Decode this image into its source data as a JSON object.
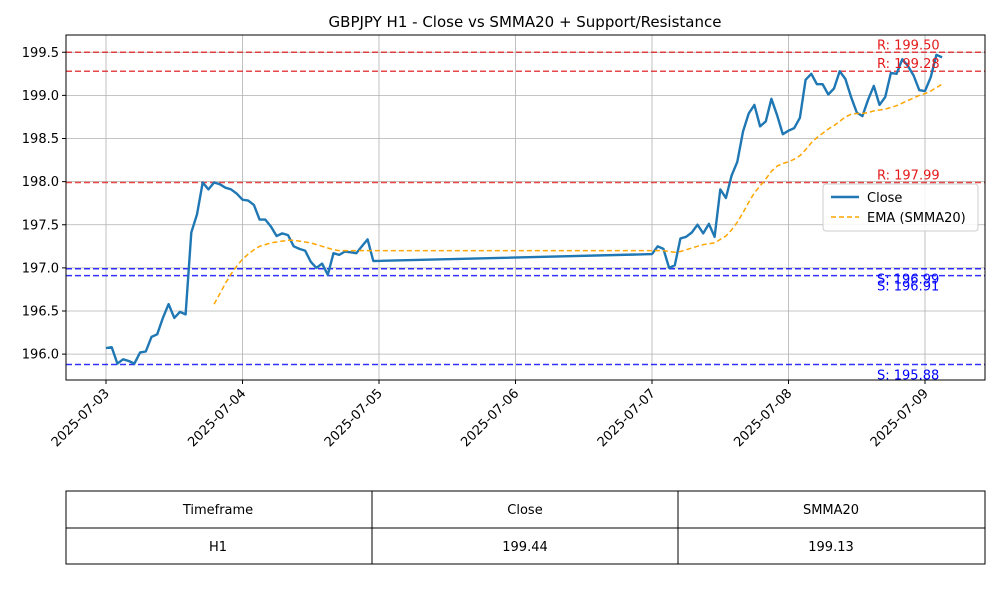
{
  "chart_data": {
    "type": "line",
    "title": "GBPJPY H1 - Close vs SMMA20 + Support/Resistance",
    "xlabel": "",
    "ylabel": "",
    "x_ticks": [
      "2025-07-03",
      "2025-07-04",
      "2025-07-05",
      "2025-07-06",
      "2025-07-07",
      "2025-07-08",
      "2025-07-09"
    ],
    "y_ticks": [
      "196.0",
      "196.5",
      "197.0",
      "197.5",
      "198.0",
      "198.5",
      "199.0",
      "199.5"
    ],
    "ylim": [
      195.7,
      199.7
    ],
    "grid": true,
    "legend_position": "right",
    "series": [
      {
        "name": "Close",
        "color": "#1f77b4",
        "style": "solid",
        "points": [
          [
            "2025-07-03T00:00",
            196.07
          ],
          [
            "2025-07-03T01:00",
            196.08
          ],
          [
            "2025-07-03T02:00",
            195.89
          ],
          [
            "2025-07-03T03:00",
            195.94
          ],
          [
            "2025-07-03T04:00",
            195.92
          ],
          [
            "2025-07-03T05:00",
            195.89
          ],
          [
            "2025-07-03T06:00",
            196.02
          ],
          [
            "2025-07-03T07:00",
            196.03
          ],
          [
            "2025-07-03T08:00",
            196.2
          ],
          [
            "2025-07-03T09:00",
            196.23
          ],
          [
            "2025-07-03T10:00",
            196.42
          ],
          [
            "2025-07-03T11:00",
            196.58
          ],
          [
            "2025-07-03T12:00",
            196.42
          ],
          [
            "2025-07-03T13:00",
            196.49
          ],
          [
            "2025-07-03T14:00",
            196.46
          ],
          [
            "2025-07-03T15:00",
            197.41
          ],
          [
            "2025-07-03T16:00",
            197.62
          ],
          [
            "2025-07-03T17:00",
            197.99
          ],
          [
            "2025-07-03T18:00",
            197.91
          ],
          [
            "2025-07-03T19:00",
            197.99
          ],
          [
            "2025-07-03T20:00",
            197.97
          ],
          [
            "2025-07-03T21:00",
            197.93
          ],
          [
            "2025-07-03T22:00",
            197.91
          ],
          [
            "2025-07-03T23:00",
            197.86
          ],
          [
            "2025-07-04T00:00",
            197.79
          ],
          [
            "2025-07-04T01:00",
            197.78
          ],
          [
            "2025-07-04T02:00",
            197.73
          ],
          [
            "2025-07-04T03:00",
            197.56
          ],
          [
            "2025-07-04T04:00",
            197.56
          ],
          [
            "2025-07-04T05:00",
            197.48
          ],
          [
            "2025-07-04T06:00",
            197.37
          ],
          [
            "2025-07-04T07:00",
            197.4
          ],
          [
            "2025-07-04T08:00",
            197.38
          ],
          [
            "2025-07-04T09:00",
            197.25
          ],
          [
            "2025-07-04T10:00",
            197.22
          ],
          [
            "2025-07-04T11:00",
            197.2
          ],
          [
            "2025-07-04T12:00",
            197.07
          ],
          [
            "2025-07-04T13:00",
            197.0
          ],
          [
            "2025-07-04T14:00",
            197.05
          ],
          [
            "2025-07-04T15:00",
            196.92
          ],
          [
            "2025-07-04T16:00",
            197.17
          ],
          [
            "2025-07-04T17:00",
            197.15
          ],
          [
            "2025-07-04T18:00",
            197.19
          ],
          [
            "2025-07-04T19:00",
            197.18
          ],
          [
            "2025-07-04T20:00",
            197.17
          ],
          [
            "2025-07-04T21:00",
            197.25
          ],
          [
            "2025-07-04T22:00",
            197.33
          ],
          [
            "2025-07-04T23:00",
            197.08
          ],
          [
            "2025-07-07T00:00",
            197.16
          ],
          [
            "2025-07-07T01:00",
            197.25
          ],
          [
            "2025-07-07T02:00",
            197.22
          ],
          [
            "2025-07-07T03:00",
            197.0
          ],
          [
            "2025-07-07T04:00",
            197.03
          ],
          [
            "2025-07-07T05:00",
            197.34
          ],
          [
            "2025-07-07T06:00",
            197.36
          ],
          [
            "2025-07-07T07:00",
            197.41
          ],
          [
            "2025-07-07T08:00",
            197.5
          ],
          [
            "2025-07-07T09:00",
            197.4
          ],
          [
            "2025-07-07T10:00",
            197.51
          ],
          [
            "2025-07-07T11:00",
            197.36
          ],
          [
            "2025-07-07T12:00",
            197.91
          ],
          [
            "2025-07-07T13:00",
            197.81
          ],
          [
            "2025-07-07T14:00",
            198.07
          ],
          [
            "2025-07-07T15:00",
            198.23
          ],
          [
            "2025-07-07T16:00",
            198.58
          ],
          [
            "2025-07-07T17:00",
            198.79
          ],
          [
            "2025-07-07T18:00",
            198.89
          ],
          [
            "2025-07-07T19:00",
            198.64
          ],
          [
            "2025-07-07T20:00",
            198.7
          ],
          [
            "2025-07-07T21:00",
            198.96
          ],
          [
            "2025-07-07T22:00",
            198.77
          ],
          [
            "2025-07-07T23:00",
            198.55
          ],
          [
            "2025-07-08T00:00",
            198.59
          ],
          [
            "2025-07-08T01:00",
            198.62
          ],
          [
            "2025-07-08T02:00",
            198.74
          ],
          [
            "2025-07-08T03:00",
            199.18
          ],
          [
            "2025-07-08T04:00",
            199.25
          ],
          [
            "2025-07-08T05:00",
            199.13
          ],
          [
            "2025-07-08T06:00",
            199.13
          ],
          [
            "2025-07-08T07:00",
            199.01
          ],
          [
            "2025-07-08T08:00",
            199.08
          ],
          [
            "2025-07-08T09:00",
            199.28
          ],
          [
            "2025-07-08T10:00",
            199.19
          ],
          [
            "2025-07-08T11:00",
            198.98
          ],
          [
            "2025-07-08T12:00",
            198.8
          ],
          [
            "2025-07-08T13:00",
            198.76
          ],
          [
            "2025-07-08T14:00",
            198.95
          ],
          [
            "2025-07-08T15:00",
            199.11
          ],
          [
            "2025-07-08T16:00",
            198.89
          ],
          [
            "2025-07-08T17:00",
            198.98
          ],
          [
            "2025-07-08T18:00",
            199.26
          ],
          [
            "2025-07-08T19:00",
            199.25
          ],
          [
            "2025-07-08T20:00",
            199.42
          ],
          [
            "2025-07-08T21:00",
            199.34
          ],
          [
            "2025-07-08T22:00",
            199.23
          ],
          [
            "2025-07-08T23:00",
            199.06
          ],
          [
            "2025-07-09T00:00",
            199.05
          ],
          [
            "2025-07-09T01:00",
            199.21
          ],
          [
            "2025-07-09T02:00",
            199.47
          ],
          [
            "2025-07-09T03:00",
            199.44
          ]
        ]
      },
      {
        "name": "EMA (SMMA20)",
        "color": "#ffa500",
        "style": "dashed",
        "points": [
          [
            "2025-07-03T19:00",
            196.58
          ],
          [
            "2025-07-03T20:00",
            196.7
          ],
          [
            "2025-07-03T21:00",
            196.82
          ],
          [
            "2025-07-03T22:00",
            196.93
          ],
          [
            "2025-07-03T23:00",
            197.02
          ],
          [
            "2025-07-04T00:00",
            197.1
          ],
          [
            "2025-07-04T01:00",
            197.16
          ],
          [
            "2025-07-04T02:00",
            197.21
          ],
          [
            "2025-07-04T03:00",
            197.25
          ],
          [
            "2025-07-04T04:00",
            197.27
          ],
          [
            "2025-07-04T05:00",
            197.29
          ],
          [
            "2025-07-04T06:00",
            197.3
          ],
          [
            "2025-07-04T07:00",
            197.31
          ],
          [
            "2025-07-04T08:00",
            197.32
          ],
          [
            "2025-07-04T09:00",
            197.32
          ],
          [
            "2025-07-04T10:00",
            197.31
          ],
          [
            "2025-07-04T11:00",
            197.3
          ],
          [
            "2025-07-04T12:00",
            197.29
          ],
          [
            "2025-07-04T13:00",
            197.27
          ],
          [
            "2025-07-04T14:00",
            197.25
          ],
          [
            "2025-07-04T15:00",
            197.23
          ],
          [
            "2025-07-04T16:00",
            197.21
          ],
          [
            "2025-07-04T17:00",
            197.2
          ],
          [
            "2025-07-04T18:00",
            197.2
          ],
          [
            "2025-07-04T19:00",
            197.2
          ],
          [
            "2025-07-04T20:00",
            197.2
          ],
          [
            "2025-07-04T21:00",
            197.2
          ],
          [
            "2025-07-04T22:00",
            197.2
          ],
          [
            "2025-07-04T23:00",
            197.2
          ],
          [
            "2025-07-07T00:00",
            197.2
          ],
          [
            "2025-07-07T01:00",
            197.2
          ],
          [
            "2025-07-07T02:00",
            197.2
          ],
          [
            "2025-07-07T03:00",
            197.19
          ],
          [
            "2025-07-07T04:00",
            197.18
          ],
          [
            "2025-07-07T05:00",
            197.19
          ],
          [
            "2025-07-07T06:00",
            197.21
          ],
          [
            "2025-07-07T07:00",
            197.23
          ],
          [
            "2025-07-07T08:00",
            197.25
          ],
          [
            "2025-07-07T09:00",
            197.27
          ],
          [
            "2025-07-07T10:00",
            197.28
          ],
          [
            "2025-07-07T11:00",
            197.29
          ],
          [
            "2025-07-07T12:00",
            197.33
          ],
          [
            "2025-07-07T13:00",
            197.37
          ],
          [
            "2025-07-07T14:00",
            197.44
          ],
          [
            "2025-07-07T15:00",
            197.53
          ],
          [
            "2025-07-07T16:00",
            197.64
          ],
          [
            "2025-07-07T17:00",
            197.76
          ],
          [
            "2025-07-07T18:00",
            197.87
          ],
          [
            "2025-07-07T19:00",
            197.95
          ],
          [
            "2025-07-07T20:00",
            198.03
          ],
          [
            "2025-07-07T21:00",
            198.12
          ],
          [
            "2025-07-07T22:00",
            198.18
          ],
          [
            "2025-07-07T23:00",
            198.21
          ],
          [
            "2025-07-08T00:00",
            198.23
          ],
          [
            "2025-07-08T01:00",
            198.26
          ],
          [
            "2025-07-08T02:00",
            198.3
          ],
          [
            "2025-07-08T03:00",
            198.37
          ],
          [
            "2025-07-08T04:00",
            198.45
          ],
          [
            "2025-07-08T05:00",
            198.51
          ],
          [
            "2025-07-08T06:00",
            198.56
          ],
          [
            "2025-07-08T07:00",
            198.61
          ],
          [
            "2025-07-08T08:00",
            198.65
          ],
          [
            "2025-07-08T09:00",
            198.7
          ],
          [
            "2025-07-08T10:00",
            198.75
          ],
          [
            "2025-07-08T11:00",
            198.78
          ],
          [
            "2025-07-08T12:00",
            198.79
          ],
          [
            "2025-07-08T13:00",
            198.79
          ],
          [
            "2025-07-08T14:00",
            198.8
          ],
          [
            "2025-07-08T15:00",
            198.82
          ],
          [
            "2025-07-08T16:00",
            198.83
          ],
          [
            "2025-07-08T17:00",
            198.84
          ],
          [
            "2025-07-08T18:00",
            198.86
          ],
          [
            "2025-07-08T19:00",
            198.88
          ],
          [
            "2025-07-08T20:00",
            198.91
          ],
          [
            "2025-07-08T21:00",
            198.94
          ],
          [
            "2025-07-08T22:00",
            198.97
          ],
          [
            "2025-07-08T23:00",
            199.0
          ],
          [
            "2025-07-09T00:00",
            199.02
          ],
          [
            "2025-07-09T01:00",
            199.05
          ],
          [
            "2025-07-09T02:00",
            199.09
          ],
          [
            "2025-07-09T03:00",
            199.13
          ]
        ]
      }
    ],
    "levels": [
      {
        "kind": "resistance",
        "value": 199.5,
        "label": "R: 199.50",
        "color": "#e31a1c"
      },
      {
        "kind": "resistance",
        "value": 199.28,
        "label": "R: 199.28",
        "color": "#e31a1c"
      },
      {
        "kind": "resistance",
        "value": 197.99,
        "label": "R: 197.99",
        "color": "#e31a1c"
      },
      {
        "kind": "support",
        "value": 196.99,
        "label": "S: 196.99",
        "color": "#0000ff"
      },
      {
        "kind": "support",
        "value": 196.91,
        "label": "S: 196.91",
        "color": "#0000ff"
      },
      {
        "kind": "support",
        "value": 195.88,
        "label": "S: 195.88",
        "color": "#0000ff"
      }
    ]
  },
  "table": {
    "headers": [
      "Timeframe",
      "Close",
      "SMMA20"
    ],
    "rows": [
      [
        "H1",
        "199.44",
        "199.13"
      ]
    ]
  }
}
